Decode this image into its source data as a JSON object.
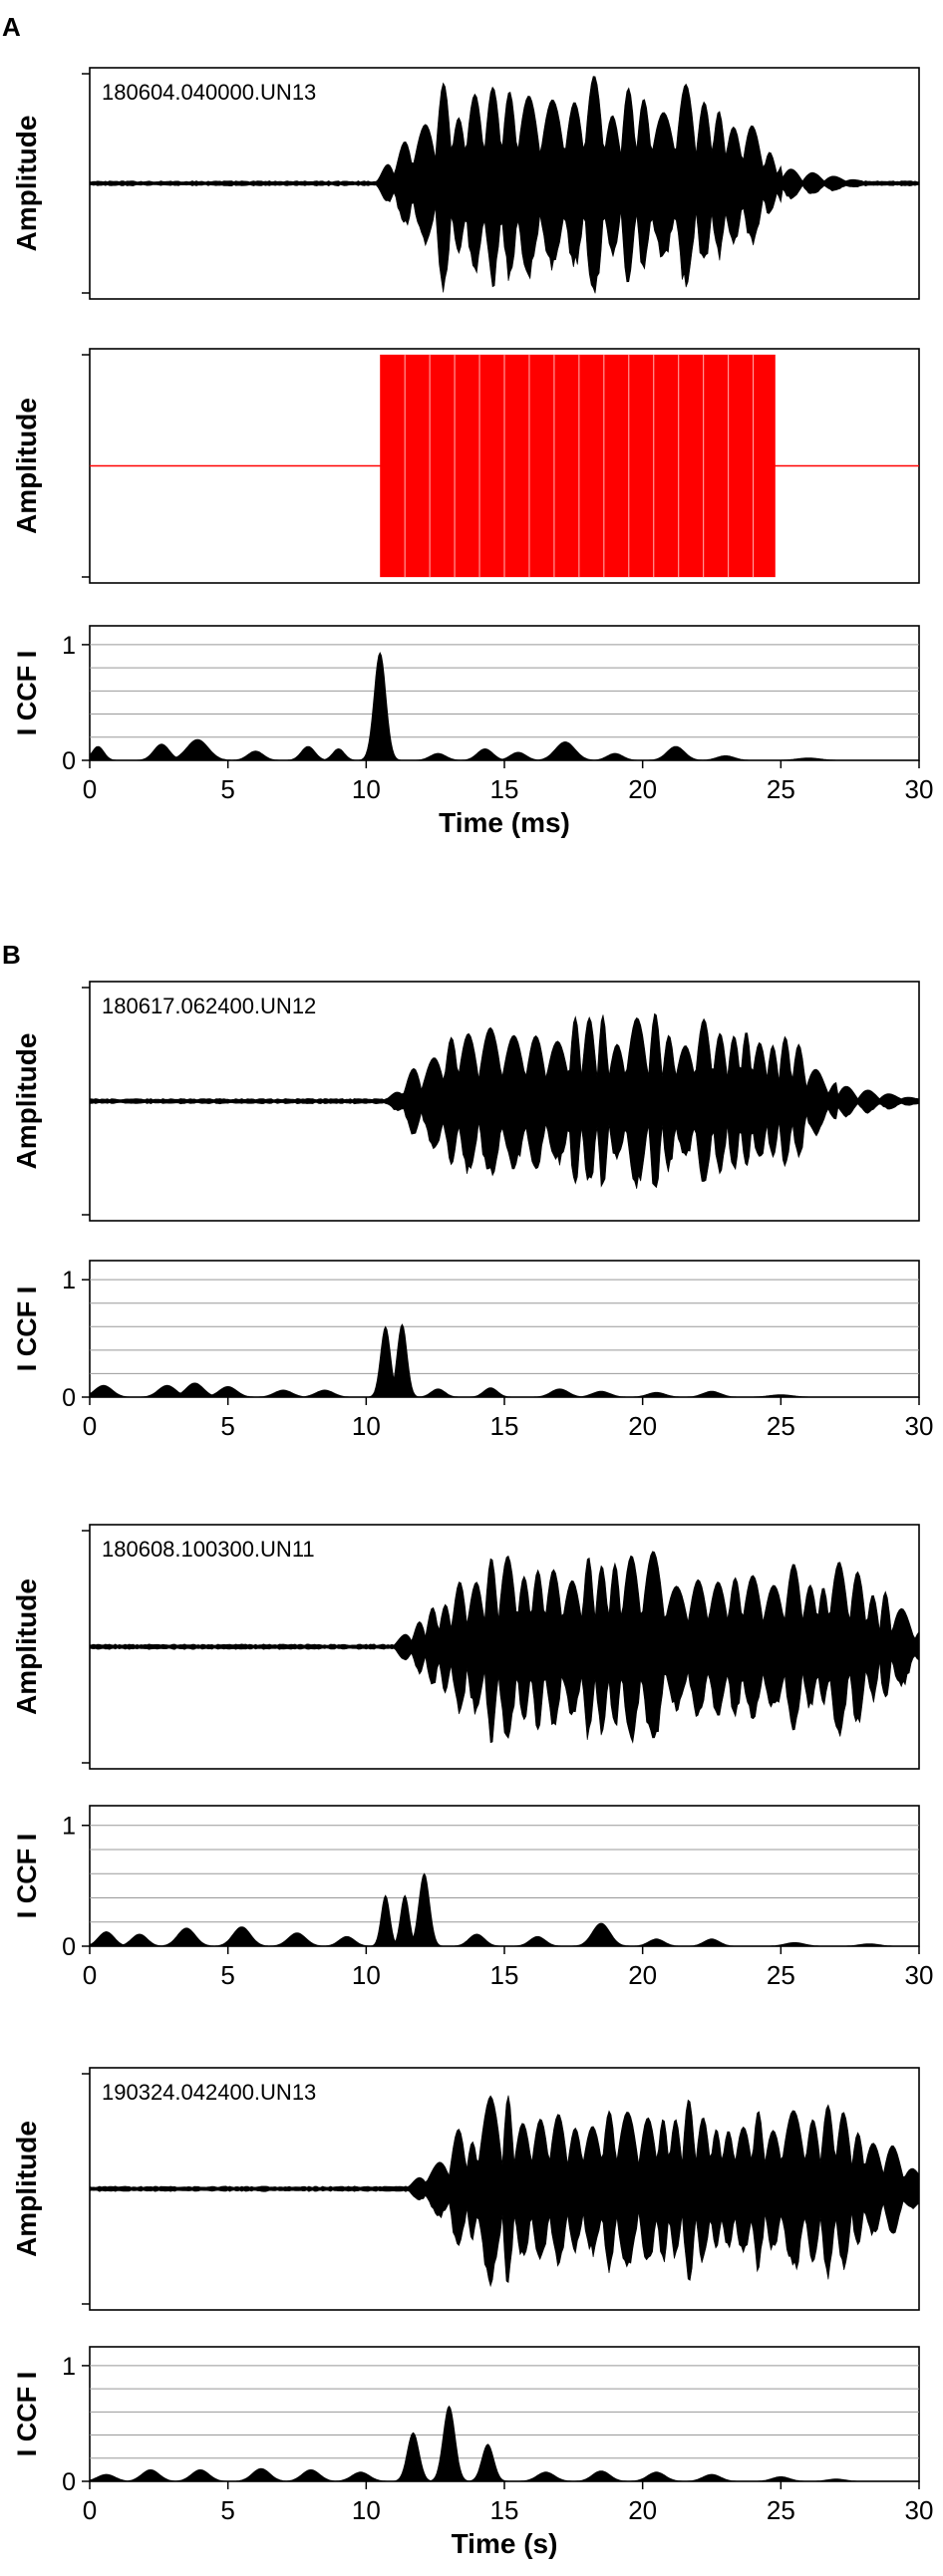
{
  "panels": [
    {
      "label": "A"
    },
    {
      "label": "B"
    }
  ],
  "colors": {
    "waveform": "#000000",
    "synthetic": "#ff0000",
    "grid": "#999999",
    "frame": "#000000"
  },
  "chart_data": [
    {
      "type": "line",
      "panel": "A",
      "title": "180604.040000.UN13",
      "xlabel": "",
      "ylabel": "Amplitude",
      "xlim": [
        0,
        30
      ],
      "description_series": [
        {
          "name": "180604.040000.UN13",
          "signal_start": 10.3,
          "signal_end": 25.0,
          "envelope_level": 0.95
        }
      ]
    },
    {
      "type": "line",
      "panel": "A",
      "title": "",
      "xlabel": "",
      "ylabel": "Amplitude",
      "xlim": [
        0,
        30
      ],
      "description_series": [
        {
          "name": "",
          "signal_start": 10.5,
          "signal_end": 24.8,
          "envelope_level": 0.95
        }
      ]
    },
    {
      "type": "area",
      "panel": "A",
      "xlabel": "Time (ms)",
      "ylabel": "I CCF I",
      "xlim": [
        0,
        30
      ],
      "ylim": [
        0,
        1
      ],
      "yticks": [
        0,
        1
      ],
      "xticks": [
        0,
        5,
        10,
        15,
        20,
        25,
        30
      ],
      "grid": true,
      "peaks": [
        {
          "x": 10.5,
          "y": 0.93,
          "w": 0.3
        },
        {
          "x": 0.3,
          "y": 0.12,
          "w": 0.3
        },
        {
          "x": 2.6,
          "y": 0.14,
          "w": 0.4
        },
        {
          "x": 3.9,
          "y": 0.18,
          "w": 0.55
        },
        {
          "x": 6.0,
          "y": 0.08,
          "w": 0.4
        },
        {
          "x": 7.9,
          "y": 0.12,
          "w": 0.35
        },
        {
          "x": 9.0,
          "y": 0.1,
          "w": 0.3
        },
        {
          "x": 12.6,
          "y": 0.06,
          "w": 0.4
        },
        {
          "x": 14.3,
          "y": 0.1,
          "w": 0.4
        },
        {
          "x": 15.5,
          "y": 0.07,
          "w": 0.4
        },
        {
          "x": 17.2,
          "y": 0.16,
          "w": 0.5
        },
        {
          "x": 19.0,
          "y": 0.06,
          "w": 0.4
        },
        {
          "x": 21.2,
          "y": 0.12,
          "w": 0.45
        },
        {
          "x": 23.0,
          "y": 0.04,
          "w": 0.45
        },
        {
          "x": 26.0,
          "y": 0.02,
          "w": 0.6
        }
      ]
    },
    {
      "type": "line",
      "panel": "B",
      "title": "180617.062400.UN12",
      "xlabel": "",
      "ylabel": "Amplitude",
      "xlim": [
        0,
        30
      ],
      "description_series": [
        {
          "name": "180617.062400.UN12",
          "signal_start": 10.6,
          "signal_end": 27.0,
          "envelope_level": 0.75
        }
      ]
    },
    {
      "type": "area",
      "panel": "B",
      "xlabel": "",
      "ylabel": "I CCF I",
      "xlim": [
        0,
        30
      ],
      "ylim": [
        0,
        1
      ],
      "yticks": [
        0,
        1
      ],
      "xticks": [
        0,
        5,
        10,
        15,
        20,
        25,
        30
      ],
      "grid": true,
      "peaks": [
        {
          "x": 10.7,
          "y": 0.6,
          "w": 0.25
        },
        {
          "x": 11.3,
          "y": 0.62,
          "w": 0.25
        },
        {
          "x": 0.5,
          "y": 0.1,
          "w": 0.45
        },
        {
          "x": 2.8,
          "y": 0.1,
          "w": 0.45
        },
        {
          "x": 3.8,
          "y": 0.12,
          "w": 0.45
        },
        {
          "x": 5.0,
          "y": 0.09,
          "w": 0.45
        },
        {
          "x": 7.0,
          "y": 0.06,
          "w": 0.45
        },
        {
          "x": 8.5,
          "y": 0.06,
          "w": 0.45
        },
        {
          "x": 12.6,
          "y": 0.07,
          "w": 0.35
        },
        {
          "x": 14.5,
          "y": 0.08,
          "w": 0.35
        },
        {
          "x": 17.0,
          "y": 0.07,
          "w": 0.45
        },
        {
          "x": 18.5,
          "y": 0.05,
          "w": 0.45
        },
        {
          "x": 20.5,
          "y": 0.04,
          "w": 0.45
        },
        {
          "x": 22.5,
          "y": 0.05,
          "w": 0.45
        },
        {
          "x": 25.0,
          "y": 0.02,
          "w": 0.6
        }
      ]
    },
    {
      "type": "line",
      "panel": "B",
      "title": "180608.100300.UN11",
      "xlabel": "",
      "ylabel": "Amplitude",
      "xlim": [
        0,
        30
      ],
      "description_series": [
        {
          "name": "180608.100300.UN11",
          "signal_start": 10.9,
          "signal_end": 30.0,
          "envelope_level": 0.8
        }
      ]
    },
    {
      "type": "area",
      "panel": "B",
      "xlabel": "",
      "ylabel": "I CCF I",
      "xlim": [
        0,
        30
      ],
      "ylim": [
        0,
        1
      ],
      "yticks": [
        0,
        1
      ],
      "xticks": [
        0,
        5,
        10,
        15,
        20,
        25,
        30
      ],
      "grid": true,
      "peaks": [
        {
          "x": 10.7,
          "y": 0.42,
          "w": 0.22
        },
        {
          "x": 11.4,
          "y": 0.42,
          "w": 0.22
        },
        {
          "x": 12.1,
          "y": 0.6,
          "w": 0.27
        },
        {
          "x": 0.6,
          "y": 0.12,
          "w": 0.4
        },
        {
          "x": 1.8,
          "y": 0.1,
          "w": 0.4
        },
        {
          "x": 3.5,
          "y": 0.15,
          "w": 0.45
        },
        {
          "x": 5.5,
          "y": 0.16,
          "w": 0.45
        },
        {
          "x": 7.5,
          "y": 0.11,
          "w": 0.45
        },
        {
          "x": 9.3,
          "y": 0.08,
          "w": 0.4
        },
        {
          "x": 14.0,
          "y": 0.1,
          "w": 0.4
        },
        {
          "x": 16.2,
          "y": 0.08,
          "w": 0.4
        },
        {
          "x": 18.5,
          "y": 0.19,
          "w": 0.45
        },
        {
          "x": 20.5,
          "y": 0.06,
          "w": 0.4
        },
        {
          "x": 22.5,
          "y": 0.06,
          "w": 0.4
        },
        {
          "x": 25.5,
          "y": 0.03,
          "w": 0.5
        },
        {
          "x": 28.2,
          "y": 0.02,
          "w": 0.5
        }
      ]
    },
    {
      "type": "line",
      "panel": "B",
      "title": "190324.042400.UN13",
      "xlabel": "",
      "ylabel": "Amplitude",
      "xlim": [
        0,
        30
      ],
      "description_series": [
        {
          "name": "190324.042400.UN13",
          "signal_start": 11.4,
          "signal_end": 30.0,
          "envelope_level": 0.8
        }
      ]
    },
    {
      "type": "area",
      "panel": "B",
      "xlabel": "Time (s)",
      "ylabel": "I CCF I",
      "xlim": [
        0,
        30
      ],
      "ylim": [
        0,
        1
      ],
      "yticks": [
        0,
        1
      ],
      "xticks": [
        0,
        5,
        10,
        15,
        20,
        25,
        30
      ],
      "grid": true,
      "peaks": [
        {
          "x": 11.7,
          "y": 0.42,
          "w": 0.3
        },
        {
          "x": 13.0,
          "y": 0.65,
          "w": 0.3
        },
        {
          "x": 14.4,
          "y": 0.32,
          "w": 0.3
        },
        {
          "x": 0.6,
          "y": 0.06,
          "w": 0.45
        },
        {
          "x": 2.2,
          "y": 0.1,
          "w": 0.45
        },
        {
          "x": 4.0,
          "y": 0.1,
          "w": 0.45
        },
        {
          "x": 6.2,
          "y": 0.11,
          "w": 0.45
        },
        {
          "x": 8.0,
          "y": 0.1,
          "w": 0.45
        },
        {
          "x": 9.8,
          "y": 0.08,
          "w": 0.45
        },
        {
          "x": 16.5,
          "y": 0.08,
          "w": 0.45
        },
        {
          "x": 18.5,
          "y": 0.09,
          "w": 0.45
        },
        {
          "x": 20.5,
          "y": 0.08,
          "w": 0.45
        },
        {
          "x": 22.5,
          "y": 0.06,
          "w": 0.45
        },
        {
          "x": 25.0,
          "y": 0.04,
          "w": 0.45
        },
        {
          "x": 27.0,
          "y": 0.02,
          "w": 0.45
        }
      ]
    }
  ]
}
